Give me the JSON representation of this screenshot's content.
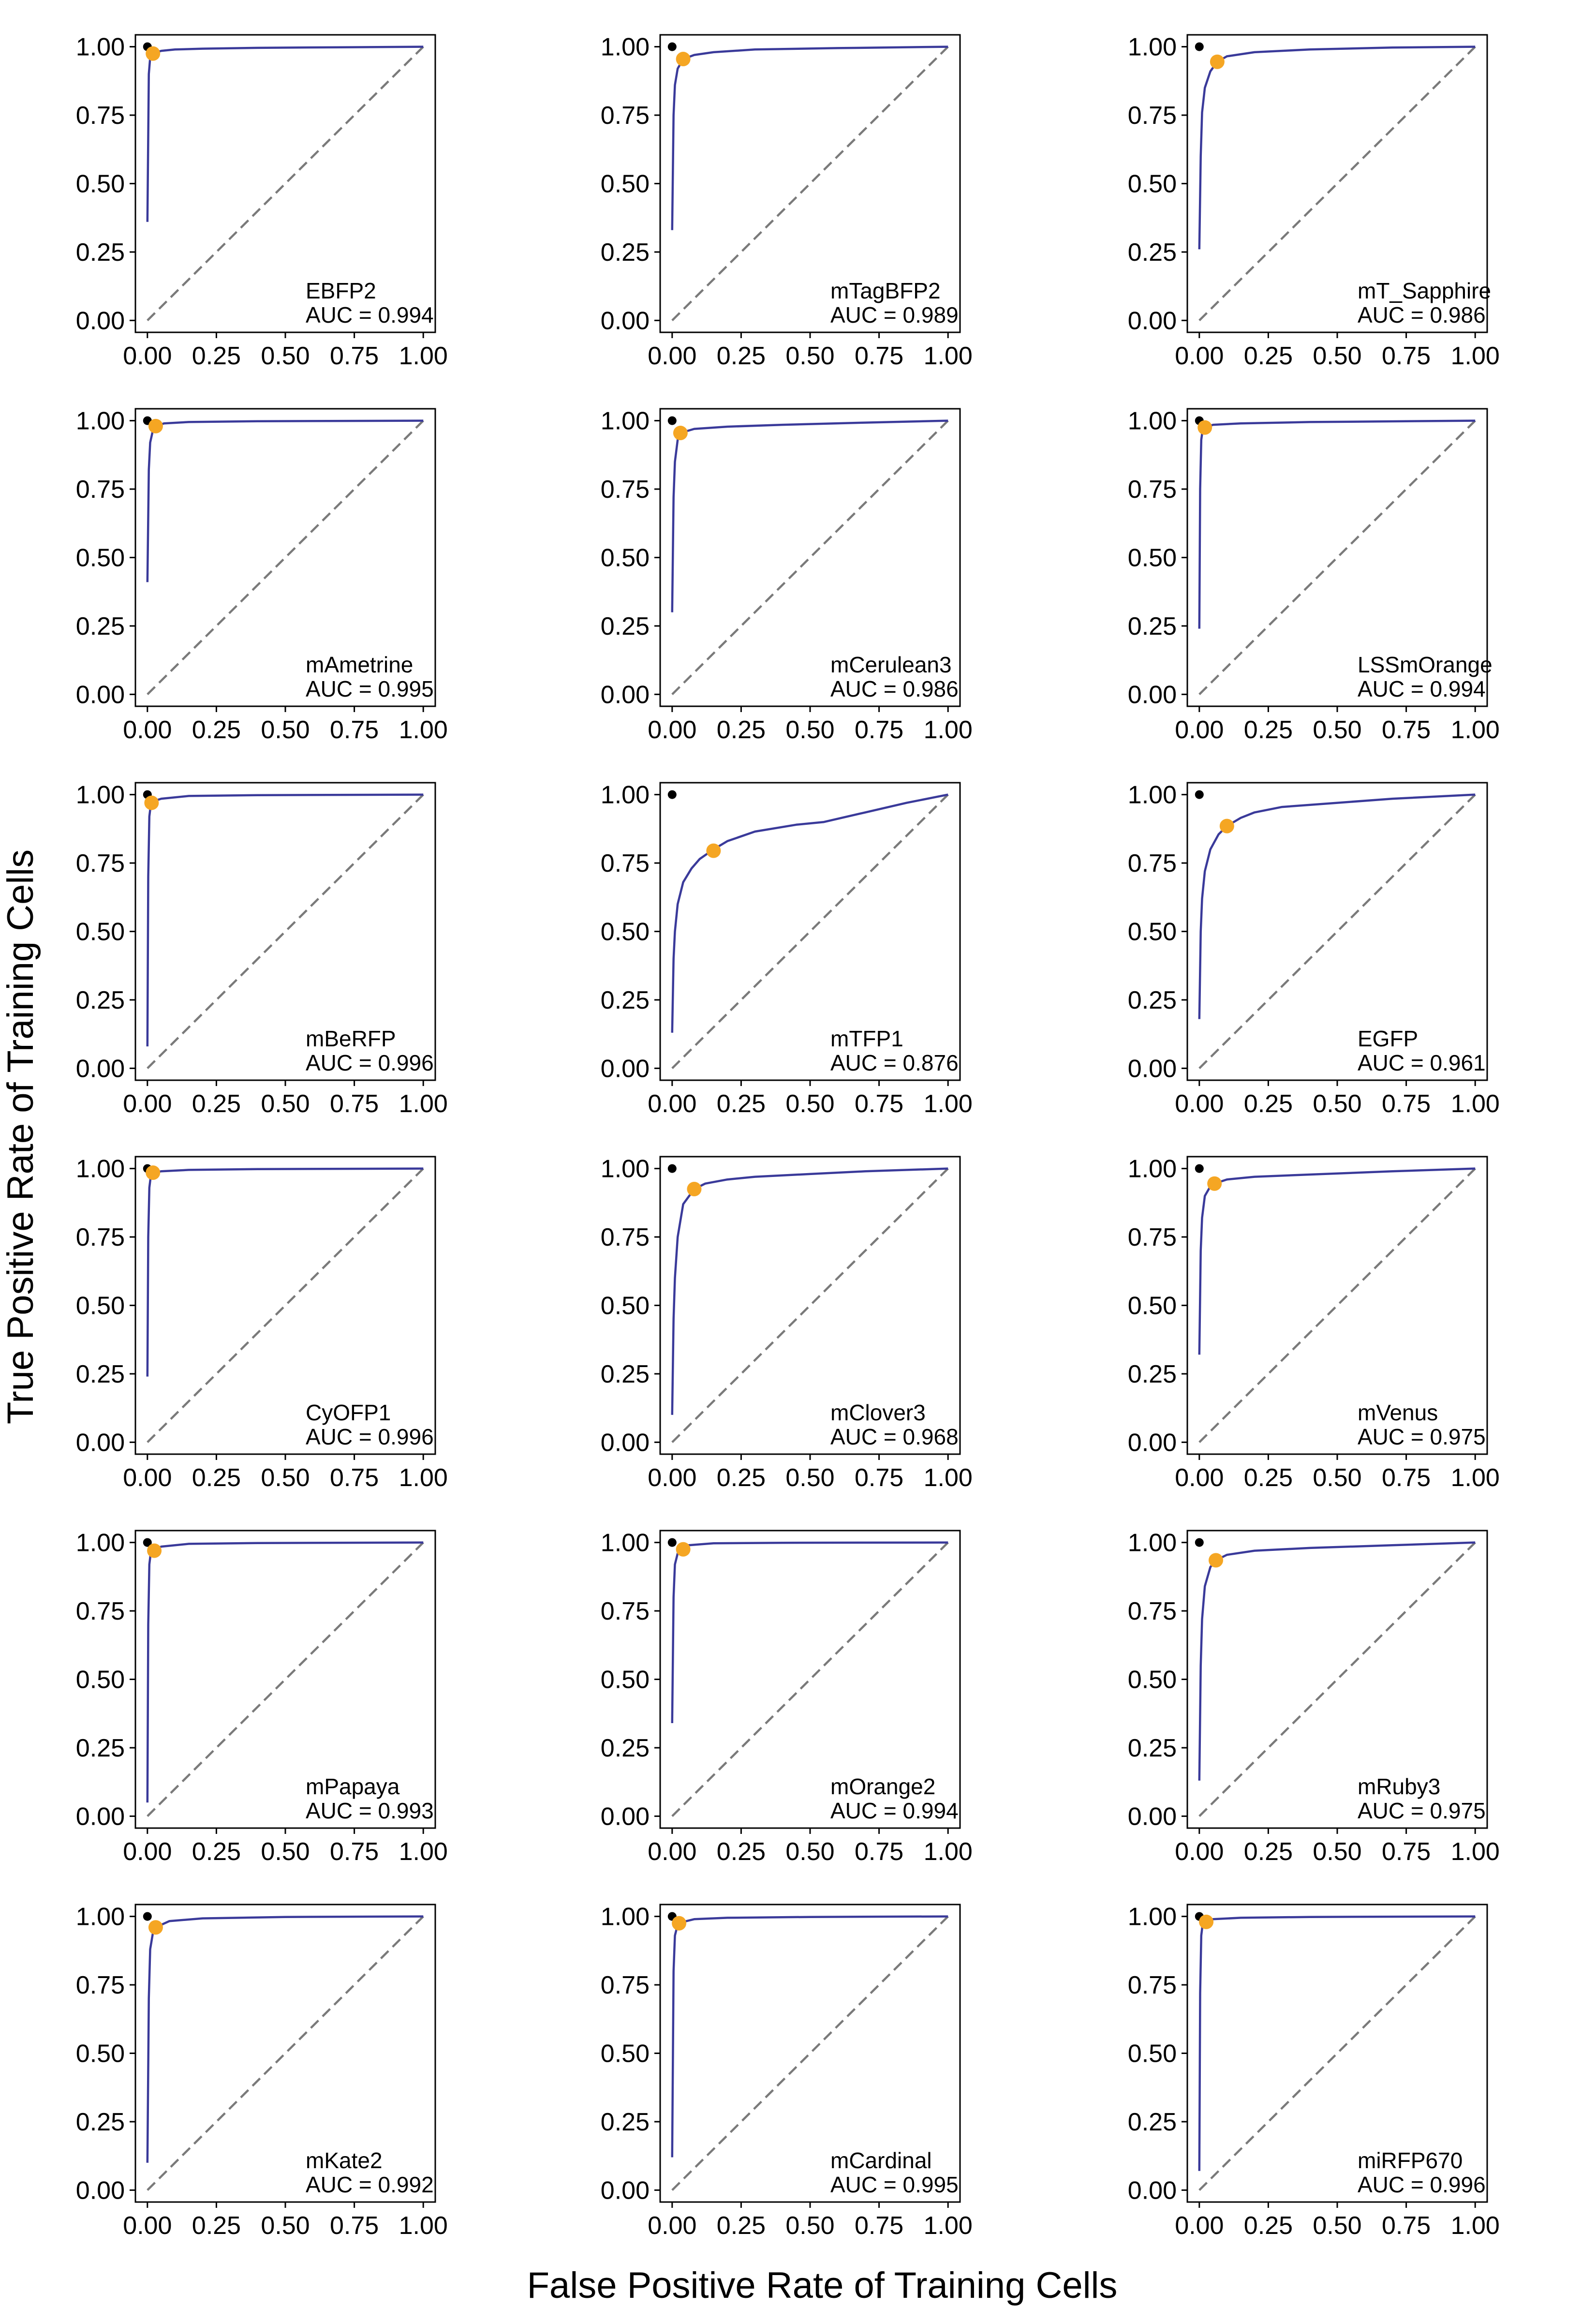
{
  "figure": {
    "xlabel": "False Positive Rate of Training Cells",
    "ylabel": "True Positive Rate of Training Cells",
    "colors": {
      "roc": "#3a3a9a",
      "chance": "#7a7a7a",
      "selected_point": "#f5a623",
      "perfect_point": "#000000",
      "frame": "#000000"
    }
  },
  "chart_data": [
    {
      "type": "line",
      "name": "EBFP2",
      "auc_text": "AUC = 0.994",
      "xlim": [
        0,
        1
      ],
      "ylim": [
        0,
        1
      ],
      "xticks": [
        "0.00",
        "0.25",
        "0.50",
        "0.75",
        "1.00"
      ],
      "yticks": [
        "0.00",
        "0.25",
        "0.50",
        "0.75",
        "1.00"
      ],
      "grid": false,
      "x": [
        0,
        0.005,
        0.01,
        0.02,
        0.05,
        0.1,
        0.2,
        0.4,
        0.7,
        1.0
      ],
      "y": [
        0.36,
        0.9,
        0.96,
        0.975,
        0.985,
        0.99,
        0.993,
        0.996,
        0.998,
        1.0
      ],
      "selected_point": [
        0.02,
        0.975
      ],
      "perfect_point": [
        0,
        1
      ]
    },
    {
      "type": "line",
      "name": "mTagBFP2",
      "auc_text": "AUC = 0.989",
      "xlim": [
        0,
        1
      ],
      "ylim": [
        0,
        1
      ],
      "xticks": [
        "0.00",
        "0.25",
        "0.50",
        "0.75",
        "1.00"
      ],
      "yticks": [
        "0.00",
        "0.25",
        "0.50",
        "0.75",
        "1.00"
      ],
      "grid": false,
      "x": [
        0,
        0.005,
        0.01,
        0.02,
        0.04,
        0.08,
        0.15,
        0.3,
        0.6,
        1.0
      ],
      "y": [
        0.33,
        0.75,
        0.86,
        0.92,
        0.955,
        0.97,
        0.98,
        0.99,
        0.995,
        1.0
      ],
      "selected_point": [
        0.04,
        0.955
      ],
      "perfect_point": [
        0,
        1
      ]
    },
    {
      "type": "line",
      "name": "mT_Sapphire",
      "auc_text": "AUC = 0.986",
      "xlim": [
        0,
        1
      ],
      "ylim": [
        0,
        1
      ],
      "xticks": [
        "0.00",
        "0.25",
        "0.50",
        "0.75",
        "1.00"
      ],
      "yticks": [
        "0.00",
        "0.25",
        "0.50",
        "0.75",
        "1.00"
      ],
      "grid": false,
      "x": [
        0,
        0.005,
        0.01,
        0.02,
        0.04,
        0.065,
        0.1,
        0.2,
        0.4,
        0.7,
        1.0
      ],
      "y": [
        0.26,
        0.6,
        0.76,
        0.85,
        0.91,
        0.945,
        0.965,
        0.98,
        0.99,
        0.997,
        1.0
      ],
      "selected_point": [
        0.065,
        0.945
      ],
      "perfect_point": [
        0,
        1
      ]
    },
    {
      "type": "line",
      "name": "mAmetrine",
      "auc_text": "AUC = 0.995",
      "xlim": [
        0,
        1
      ],
      "ylim": [
        0,
        1
      ],
      "xticks": [
        "0.00",
        "0.25",
        "0.50",
        "0.75",
        "1.00"
      ],
      "yticks": [
        "0.00",
        "0.25",
        "0.50",
        "0.75",
        "1.00"
      ],
      "grid": false,
      "x": [
        0,
        0.005,
        0.01,
        0.02,
        0.03,
        0.06,
        0.15,
        0.4,
        1.0
      ],
      "y": [
        0.41,
        0.82,
        0.92,
        0.965,
        0.98,
        0.99,
        0.995,
        0.998,
        1.0
      ],
      "selected_point": [
        0.03,
        0.98
      ],
      "perfect_point": [
        0,
        1
      ]
    },
    {
      "type": "line",
      "name": "mCerulean3",
      "auc_text": "AUC = 0.986",
      "xlim": [
        0,
        1
      ],
      "ylim": [
        0,
        1
      ],
      "xticks": [
        "0.00",
        "0.25",
        "0.50",
        "0.75",
        "1.00"
      ],
      "yticks": [
        "0.00",
        "0.25",
        "0.50",
        "0.75",
        "1.00"
      ],
      "grid": false,
      "x": [
        0,
        0.005,
        0.01,
        0.02,
        0.03,
        0.08,
        0.2,
        0.4,
        0.7,
        1.0
      ],
      "y": [
        0.3,
        0.72,
        0.85,
        0.93,
        0.955,
        0.97,
        0.978,
        0.985,
        0.993,
        1.0
      ],
      "selected_point": [
        0.03,
        0.955
      ],
      "perfect_point": [
        0,
        1
      ]
    },
    {
      "type": "line",
      "name": "LSSmOrange",
      "auc_text": "AUC = 0.994",
      "xlim": [
        0,
        1
      ],
      "ylim": [
        0,
        1
      ],
      "xticks": [
        "0.00",
        "0.25",
        "0.50",
        "0.75",
        "1.00"
      ],
      "yticks": [
        "0.00",
        "0.25",
        "0.50",
        "0.75",
        "1.00"
      ],
      "grid": false,
      "x": [
        0,
        0.003,
        0.007,
        0.012,
        0.02,
        0.05,
        0.15,
        0.4,
        1.0
      ],
      "y": [
        0.24,
        0.75,
        0.93,
        0.965,
        0.975,
        0.985,
        0.99,
        0.995,
        1.0
      ],
      "selected_point": [
        0.02,
        0.975
      ],
      "perfect_point": [
        0,
        1
      ]
    },
    {
      "type": "line",
      "name": "mBeRFP",
      "auc_text": "AUC = 0.996",
      "xlim": [
        0,
        1
      ],
      "ylim": [
        0,
        1
      ],
      "xticks": [
        "0.00",
        "0.25",
        "0.50",
        "0.75",
        "1.00"
      ],
      "yticks": [
        "0.00",
        "0.25",
        "0.50",
        "0.75",
        "1.00"
      ],
      "grid": false,
      "x": [
        0,
        0.003,
        0.007,
        0.012,
        0.02,
        0.05,
        0.15,
        0.4,
        1.0
      ],
      "y": [
        0.08,
        0.7,
        0.92,
        0.96,
        0.975,
        0.985,
        0.995,
        0.998,
        1.0
      ],
      "selected_point": [
        0.015,
        0.97
      ],
      "perfect_point": [
        0,
        1
      ]
    },
    {
      "type": "line",
      "name": "mTFP1",
      "auc_text": "AUC = 0.876",
      "xlim": [
        0,
        1
      ],
      "ylim": [
        0,
        1
      ],
      "xticks": [
        "0.00",
        "0.25",
        "0.50",
        "0.75",
        "1.00"
      ],
      "yticks": [
        "0.00",
        "0.25",
        "0.50",
        "0.75",
        "1.00"
      ],
      "grid": false,
      "x": [
        0,
        0.005,
        0.01,
        0.02,
        0.04,
        0.07,
        0.1,
        0.15,
        0.2,
        0.3,
        0.45,
        0.55,
        0.7,
        0.85,
        1.0
      ],
      "y": [
        0.13,
        0.4,
        0.5,
        0.6,
        0.68,
        0.73,
        0.765,
        0.8,
        0.83,
        0.865,
        0.89,
        0.9,
        0.935,
        0.97,
        1.0
      ],
      "selected_point": [
        0.15,
        0.795
      ],
      "perfect_point": [
        0,
        1
      ]
    },
    {
      "type": "line",
      "name": "EGFP",
      "auc_text": "AUC = 0.961",
      "xlim": [
        0,
        1
      ],
      "ylim": [
        0,
        1
      ],
      "xticks": [
        "0.00",
        "0.25",
        "0.50",
        "0.75",
        "1.00"
      ],
      "yticks": [
        "0.00",
        "0.25",
        "0.50",
        "0.75",
        "1.00"
      ],
      "grid": false,
      "x": [
        0,
        0.005,
        0.01,
        0.02,
        0.04,
        0.07,
        0.1,
        0.15,
        0.2,
        0.3,
        0.5,
        0.7,
        1.0
      ],
      "y": [
        0.18,
        0.5,
        0.62,
        0.72,
        0.8,
        0.855,
        0.885,
        0.915,
        0.935,
        0.955,
        0.97,
        0.985,
        1.0
      ],
      "selected_point": [
        0.1,
        0.885
      ],
      "perfect_point": [
        0,
        1
      ]
    },
    {
      "type": "line",
      "name": "CyOFP1",
      "auc_text": "AUC = 0.996",
      "xlim": [
        0,
        1
      ],
      "ylim": [
        0,
        1
      ],
      "xticks": [
        "0.00",
        "0.25",
        "0.50",
        "0.75",
        "1.00"
      ],
      "yticks": [
        "0.00",
        "0.25",
        "0.50",
        "0.75",
        "1.00"
      ],
      "grid": false,
      "x": [
        0,
        0.003,
        0.007,
        0.012,
        0.02,
        0.05,
        0.15,
        0.4,
        1.0
      ],
      "y": [
        0.24,
        0.75,
        0.93,
        0.97,
        0.985,
        0.99,
        0.995,
        0.998,
        1.0
      ],
      "selected_point": [
        0.02,
        0.985
      ],
      "perfect_point": [
        0,
        1
      ]
    },
    {
      "type": "line",
      "name": "mClover3",
      "auc_text": "AUC = 0.968",
      "xlim": [
        0,
        1
      ],
      "ylim": [
        0,
        1
      ],
      "xticks": [
        "0.00",
        "0.25",
        "0.50",
        "0.75",
        "1.00"
      ],
      "yticks": [
        "0.00",
        "0.25",
        "0.50",
        "0.75",
        "1.00"
      ],
      "grid": false,
      "x": [
        0,
        0.005,
        0.01,
        0.02,
        0.04,
        0.08,
        0.12,
        0.2,
        0.3,
        0.5,
        0.7,
        1.0
      ],
      "y": [
        0.1,
        0.45,
        0.6,
        0.75,
        0.87,
        0.925,
        0.945,
        0.96,
        0.97,
        0.98,
        0.99,
        1.0
      ],
      "selected_point": [
        0.08,
        0.925
      ],
      "perfect_point": [
        0,
        1
      ]
    },
    {
      "type": "line",
      "name": "mVenus",
      "auc_text": "AUC = 0.975",
      "xlim": [
        0,
        1
      ],
      "ylim": [
        0,
        1
      ],
      "xticks": [
        "0.00",
        "0.25",
        "0.50",
        "0.75",
        "1.00"
      ],
      "yticks": [
        "0.00",
        "0.25",
        "0.50",
        "0.75",
        "1.00"
      ],
      "grid": false,
      "x": [
        0,
        0.005,
        0.01,
        0.02,
        0.04,
        0.055,
        0.1,
        0.2,
        0.4,
        0.7,
        1.0
      ],
      "y": [
        0.32,
        0.7,
        0.82,
        0.9,
        0.935,
        0.945,
        0.96,
        0.97,
        0.978,
        0.99,
        1.0
      ],
      "selected_point": [
        0.055,
        0.945
      ],
      "perfect_point": [
        0,
        1
      ]
    },
    {
      "type": "line",
      "name": "mPapaya",
      "auc_text": "AUC = 0.993",
      "xlim": [
        0,
        1
      ],
      "ylim": [
        0,
        1
      ],
      "xticks": [
        "0.00",
        "0.25",
        "0.50",
        "0.75",
        "1.00"
      ],
      "yticks": [
        "0.00",
        "0.25",
        "0.50",
        "0.75",
        "1.00"
      ],
      "grid": false,
      "x": [
        0,
        0.003,
        0.007,
        0.012,
        0.02,
        0.05,
        0.15,
        0.4,
        1.0
      ],
      "y": [
        0.05,
        0.7,
        0.92,
        0.96,
        0.97,
        0.985,
        0.995,
        0.998,
        1.0
      ],
      "selected_point": [
        0.025,
        0.97
      ],
      "perfect_point": [
        0,
        1
      ]
    },
    {
      "type": "line",
      "name": "mOrange2",
      "auc_text": "AUC = 0.994",
      "xlim": [
        0,
        1
      ],
      "ylim": [
        0,
        1
      ],
      "xticks": [
        "0.00",
        "0.25",
        "0.50",
        "0.75",
        "1.00"
      ],
      "yticks": [
        "0.00",
        "0.25",
        "0.50",
        "0.75",
        "1.00"
      ],
      "grid": false,
      "x": [
        0,
        0.005,
        0.01,
        0.02,
        0.03,
        0.06,
        0.15,
        0.4,
        1.0
      ],
      "y": [
        0.34,
        0.8,
        0.92,
        0.96,
        0.975,
        0.99,
        0.997,
        0.999,
        1.0
      ],
      "selected_point": [
        0.04,
        0.975
      ],
      "perfect_point": [
        0,
        1
      ]
    },
    {
      "type": "line",
      "name": "mRuby3",
      "auc_text": "AUC = 0.975",
      "xlim": [
        0,
        1
      ],
      "ylim": [
        0,
        1
      ],
      "xticks": [
        "0.00",
        "0.25",
        "0.50",
        "0.75",
        "1.00"
      ],
      "yticks": [
        "0.00",
        "0.25",
        "0.50",
        "0.75",
        "1.00"
      ],
      "grid": false,
      "x": [
        0,
        0.005,
        0.01,
        0.02,
        0.04,
        0.06,
        0.1,
        0.2,
        0.4,
        0.7,
        1.0
      ],
      "y": [
        0.13,
        0.55,
        0.72,
        0.84,
        0.91,
        0.935,
        0.955,
        0.97,
        0.98,
        0.99,
        1.0
      ],
      "selected_point": [
        0.06,
        0.935
      ],
      "perfect_point": [
        0,
        1
      ]
    },
    {
      "type": "line",
      "name": "mKate2",
      "auc_text": "AUC = 0.992",
      "xlim": [
        0,
        1
      ],
      "ylim": [
        0,
        1
      ],
      "xticks": [
        "0.00",
        "0.25",
        "0.50",
        "0.75",
        "1.00"
      ],
      "yticks": [
        "0.00",
        "0.25",
        "0.50",
        "0.75",
        "1.00"
      ],
      "grid": false,
      "x": [
        0,
        0.005,
        0.01,
        0.02,
        0.03,
        0.08,
        0.2,
        0.5,
        1.0
      ],
      "y": [
        0.1,
        0.7,
        0.88,
        0.94,
        0.96,
        0.983,
        0.993,
        0.998,
        1.0
      ],
      "selected_point": [
        0.03,
        0.96
      ],
      "perfect_point": [
        0,
        1
      ]
    },
    {
      "type": "line",
      "name": "mCardinal",
      "auc_text": "AUC = 0.995",
      "xlim": [
        0,
        1
      ],
      "ylim": [
        0,
        1
      ],
      "xticks": [
        "0.00",
        "0.25",
        "0.50",
        "0.75",
        "1.00"
      ],
      "yticks": [
        "0.00",
        "0.25",
        "0.50",
        "0.75",
        "1.00"
      ],
      "grid": false,
      "x": [
        0,
        0.005,
        0.01,
        0.02,
        0.04,
        0.08,
        0.2,
        0.5,
        1.0
      ],
      "y": [
        0.12,
        0.8,
        0.93,
        0.97,
        0.98,
        0.99,
        0.995,
        0.998,
        1.0
      ],
      "selected_point": [
        0.025,
        0.975
      ],
      "perfect_point": [
        0,
        1
      ]
    },
    {
      "type": "line",
      "name": "miRFP670",
      "auc_text": "AUC = 0.996",
      "xlim": [
        0,
        1
      ],
      "ylim": [
        0,
        1
      ],
      "xticks": [
        "0.00",
        "0.25",
        "0.50",
        "0.75",
        "1.00"
      ],
      "yticks": [
        "0.00",
        "0.25",
        "0.50",
        "0.75",
        "1.00"
      ],
      "grid": false,
      "x": [
        0,
        0.003,
        0.007,
        0.012,
        0.025,
        0.05,
        0.15,
        0.4,
        1.0
      ],
      "y": [
        0.07,
        0.72,
        0.93,
        0.97,
        0.98,
        0.99,
        0.995,
        0.998,
        1.0
      ],
      "selected_point": [
        0.025,
        0.98
      ],
      "perfect_point": [
        0,
        1
      ]
    }
  ]
}
